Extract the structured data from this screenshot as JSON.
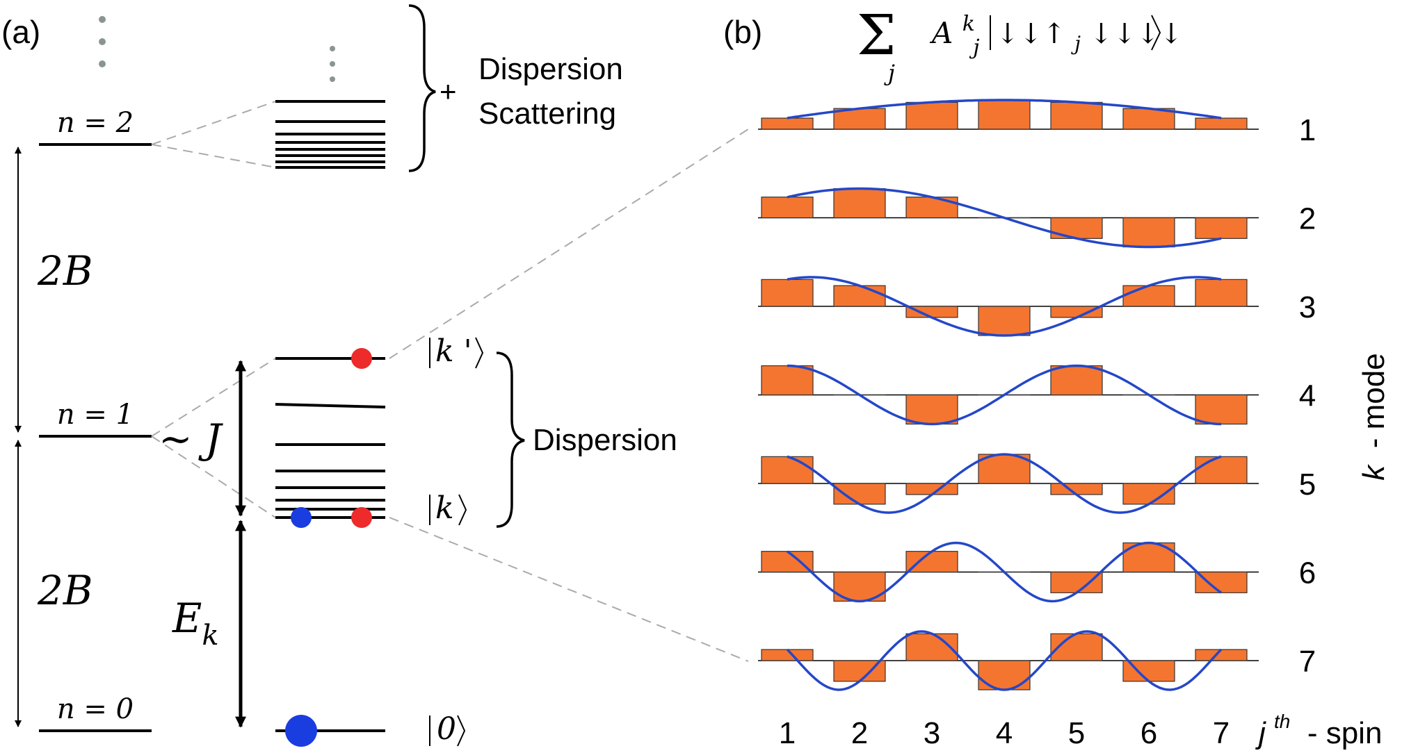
{
  "panel_a": {
    "label": "(a)",
    "levels": [
      {
        "n_label": "n = 2"
      },
      {
        "n_label": "n = 1"
      },
      {
        "n_label": "n = 0"
      }
    ],
    "gaps": [
      "2B",
      "2B"
    ],
    "coupling": "~ J",
    "energy": {
      "symbol": "E",
      "sub": "k"
    },
    "ket_kprime": {
      "inner": "k '"
    },
    "ket_k": {
      "inner": "k"
    },
    "ket_0": {
      "inner": "0"
    },
    "upper_brace": {
      "plus": "+",
      "line1": "Dispersion",
      "line2": "Scattering"
    },
    "lower_brace": {
      "text": "Dispersion"
    }
  },
  "panel_b": {
    "label": "(b)",
    "formula": {
      "sum": "Σ",
      "sum_index": "j",
      "coef": "A",
      "coef_sup": "k",
      "coef_sub": "j",
      "state_a": "↓↓↑",
      "state_sub": "j",
      "state_b": "↓↓↓↓"
    },
    "x_axis_title": {
      "j": "j",
      "sup": "th",
      "rest": " - spin"
    },
    "y_axis_title": {
      "k": "k",
      "rest": " - mode"
    }
  },
  "colors": {
    "bar_fill": "#f47530",
    "curve": "#2447c8",
    "blue_dot": "#1a3de0",
    "red_dot": "#ee2b2b",
    "dashed": "#aaaaaa"
  },
  "chart_data": {
    "type": "bar",
    "title": "",
    "xlabel": "jth - spin",
    "ylabel": "k - mode",
    "categories": [
      "1",
      "2",
      "3",
      "4",
      "5",
      "6",
      "7"
    ],
    "series": [
      {
        "name": "1",
        "values": [
          0.38,
          0.71,
          0.92,
          1.0,
          0.92,
          0.71,
          0.38
        ]
      },
      {
        "name": "2",
        "values": [
          0.71,
          1.0,
          0.71,
          0.0,
          -0.71,
          -1.0,
          -0.71
        ]
      },
      {
        "name": "3",
        "values": [
          0.92,
          0.71,
          -0.38,
          -1.0,
          -0.38,
          0.71,
          0.92
        ]
      },
      {
        "name": "4",
        "values": [
          1.0,
          0.0,
          -1.0,
          0.0,
          1.0,
          0.0,
          -1.0
        ]
      },
      {
        "name": "5",
        "values": [
          0.92,
          -0.71,
          -0.38,
          1.0,
          -0.38,
          -0.71,
          0.92
        ]
      },
      {
        "name": "6",
        "values": [
          0.71,
          -1.0,
          0.71,
          0.0,
          -0.71,
          1.0,
          -0.71
        ]
      },
      {
        "name": "7",
        "values": [
          0.38,
          -0.71,
          0.92,
          -1.0,
          0.92,
          -0.71,
          0.38
        ]
      }
    ]
  }
}
